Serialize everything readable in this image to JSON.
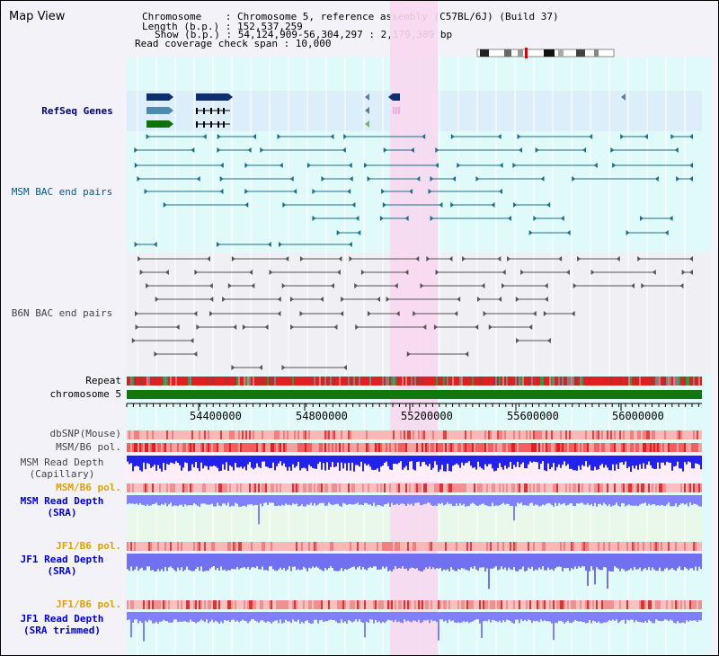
{
  "header": {
    "title": "Map View",
    "info_lines": [
      "Chromosome    : Chromosome 5, reference assembly (C57BL/6J) (Build 37)",
      "Length (b.p.) : 152,537,259",
      "Show (b.p.) : 54,124,909-56,304,297 : 2,179,389 bp",
      "Read coverage check span : 10,000"
    ]
  },
  "tracks": {
    "refseq": "RefSeq Genes",
    "msm_bac": "MSM BAC end pairs",
    "b6n_bac": "B6N BAC end pairs",
    "repeat": "Repeat",
    "chromosome": "chromosome 5",
    "dbsnp": "dbSNP(Mouse)",
    "msm_b6_pol_1": "MSM/B6 pol.",
    "msm_cap_1": "MSM Read Depth",
    "msm_cap_2": "(Capillary)",
    "msm_b6_pol_2": "MSM/B6 pol.",
    "msm_sra_1": "MSM Read Depth",
    "msm_sra_2": "(SRA)",
    "jf1_pol_1": "JF1/B6 pol.",
    "jf1_sra_1": "JF1 Read Depth",
    "jf1_sra_2": "(SRA)",
    "jf1_pol_2": "JF1/B6 pol.",
    "jf1_trim_1": "JF1 Read Depth",
    "jf1_trim_2": "(SRA trimmed)"
  },
  "axis": {
    "ticks": [
      "54400000",
      "54800000",
      "55200000",
      "55600000",
      "56000000"
    ]
  },
  "colors": {
    "highlight": "#f8d8f0",
    "refseq_bg": "#dceefa",
    "lane_bg": "#e0fafa",
    "msm_bac": "#1a6e8e",
    "b6n_bac": "#555555",
    "chromosome": "#117711",
    "depth": "#2222ee",
    "depth_light": "#8080ff"
  }
}
